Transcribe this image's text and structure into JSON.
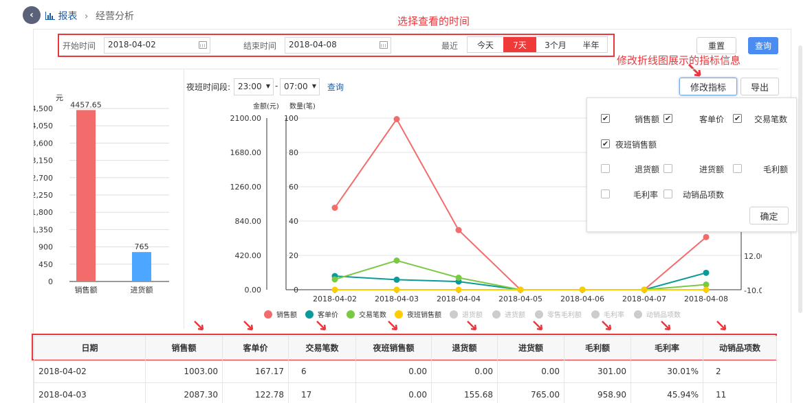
{
  "breadcrumb": {
    "icon": "bar-chart-icon",
    "root": "报表",
    "sep": "›",
    "current": "经营分析"
  },
  "annotations": {
    "time_note": "选择查看的时间",
    "indicator_note": "修改折线图展示的指标信息"
  },
  "filters": {
    "start_label": "开始时间",
    "start_value": "2018-04-02",
    "end_label": "结束时间",
    "end_value": "2018-04-08",
    "recent_label": "最近",
    "quick": [
      "今天",
      "7天",
      "3个月",
      "半年"
    ],
    "active_quick": "7天",
    "reset": "重置",
    "query": "查询"
  },
  "night": {
    "label": "夜班时间段:",
    "from": "23:00",
    "to": "07:00",
    "sep": "-",
    "query": "查询"
  },
  "actions": {
    "modify": "修改指标",
    "export": "导出"
  },
  "colors": {
    "red": "#f36c6c",
    "blue": "#4da6ff",
    "teal": "#0a9a9a",
    "green": "#7ac943",
    "yellow": "#ffcc00",
    "primary": "#4a8cf0",
    "accent": "#e8383d"
  },
  "chart_data": [
    {
      "type": "bar",
      "unit": "元",
      "categories": [
        "销售额",
        "进货额"
      ],
      "values": [
        4457.65,
        765
      ],
      "value_labels": [
        "4457.65",
        "765"
      ],
      "ylim": [
        0,
        4500
      ],
      "yticks": [
        "4,500",
        "4,050",
        "3,600",
        "3,150",
        "2,700",
        "2,250",
        "1,800",
        "1,350",
        "900",
        "450",
        "0"
      ]
    },
    {
      "type": "line",
      "y1label": "金额(元)",
      "y2label": "数量(笔)",
      "x": [
        "2018-04-02",
        "2018-04-03",
        "2018-04-04",
        "2018-04-05",
        "2018-04-06",
        "2018-04-07",
        "2018-04-08"
      ],
      "y1ticks": [
        "2100.00",
        "1680.00",
        "1260.00",
        "840.00",
        "420.00",
        "0.00"
      ],
      "y2ticks": [
        "100",
        "80",
        "60",
        "40",
        "20",
        "0"
      ],
      "y3ticks": [
        "12.00",
        "-10.00"
      ],
      "series": [
        {
          "name": "销售额",
          "color": "#f36c6c",
          "values": [
            1003.0,
            2087.3,
            730,
            0,
            0,
            0,
            644
          ]
        },
        {
          "name": "客单价",
          "color": "#0a9a9a",
          "values": [
            167.17,
            122.78,
            100,
            0,
            0,
            0,
            207
          ]
        },
        {
          "name": "交易笔数",
          "color": "#7ac943",
          "values": [
            6,
            17,
            7,
            0,
            0,
            0,
            3
          ]
        },
        {
          "name": "夜班销售额",
          "color": "#ffcc00",
          "values": [
            0,
            0,
            0,
            0,
            0,
            0,
            0
          ]
        }
      ],
      "legend": [
        {
          "name": "销售额",
          "color": "#f36c6c"
        },
        {
          "name": "客单价",
          "color": "#0a9a9a"
        },
        {
          "name": "交易笔数",
          "color": "#7ac943"
        },
        {
          "name": "夜班销售额",
          "color": "#ffcc00"
        },
        {
          "name": "退货额",
          "color": "#cccccc"
        },
        {
          "name": "进货额",
          "color": "#cccccc"
        },
        {
          "name": "零售毛利额",
          "color": "#cccccc"
        },
        {
          "name": "毛利率",
          "color": "#cccccc"
        },
        {
          "name": "动销品项数",
          "color": "#cccccc"
        }
      ]
    }
  ],
  "popup": {
    "items": [
      {
        "label": "销售额",
        "checked": true
      },
      {
        "label": "客单价",
        "checked": true
      },
      {
        "label": "交易笔数",
        "checked": true
      },
      {
        "label": "夜班销售额",
        "checked": true
      },
      {
        "label": "退货额",
        "checked": false
      },
      {
        "label": "进货额",
        "checked": false
      },
      {
        "label": "毛利额",
        "checked": false
      },
      {
        "label": "毛利率",
        "checked": false
      },
      {
        "label": "动销品项数",
        "checked": false
      }
    ],
    "confirm": "确定"
  },
  "table": {
    "headers": [
      "日期",
      "销售额",
      "客单价",
      "交易笔数",
      "夜班销售额",
      "退货额",
      "进货额",
      "毛利额",
      "毛利率",
      "动销品项数"
    ],
    "rows": [
      [
        "2018-04-02",
        "1003.00",
        "167.17",
        "6",
        "0.00",
        "0.00",
        "0.00",
        "301.00",
        "30.01%",
        "2"
      ],
      [
        "2018-04-03",
        "2087.30",
        "122.78",
        "17",
        "0.00",
        "155.68",
        "765.00",
        "958.90",
        "45.94%",
        "11"
      ]
    ]
  }
}
